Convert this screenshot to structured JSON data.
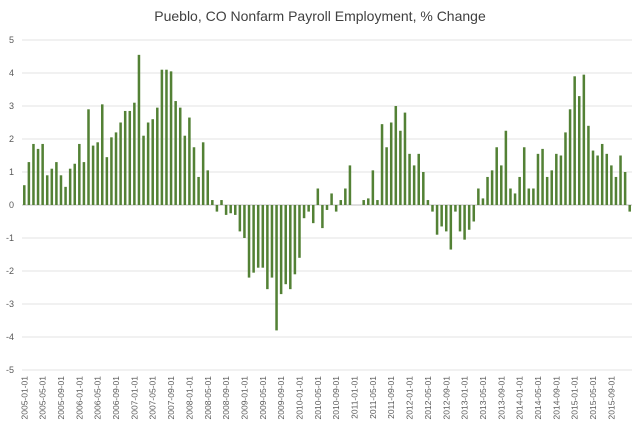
{
  "chart_data": {
    "type": "bar",
    "title": "Pueblo, CO Nonfarm Payroll Employment, % Change",
    "xlabel": "",
    "ylabel": "",
    "ylim": [
      -5,
      5
    ],
    "yticks": [
      5,
      4,
      3,
      2,
      1,
      0,
      -1,
      -2,
      -3,
      -4,
      -5
    ],
    "grid": true,
    "legend": "none",
    "color": "#538135",
    "x_tick_labels": [
      "2005-01-01",
      "2005-05-01",
      "2005-09-01",
      "2006-01-01",
      "2006-05-01",
      "2006-09-01",
      "2007-01-01",
      "2007-05-01",
      "2007-09-01",
      "2008-01-01",
      "2008-05-01",
      "2008-09-01",
      "2009-01-01",
      "2009-05-01",
      "2009-09-01",
      "2010-01-01",
      "2010-05-01",
      "2010-09-01",
      "2011-01-01",
      "2011-05-01",
      "2011-09-01",
      "2012-01-01",
      "2012-05-01",
      "2012-09-01",
      "2013-01-01",
      "2013-05-01",
      "2013-09-01",
      "2014-01-01",
      "2014-05-01",
      "2014-09-01",
      "2015-01-01",
      "2015-05-01",
      "2015-09-01"
    ],
    "x_start": "2005-01",
    "values": [
      0.6,
      1.3,
      1.85,
      1.7,
      1.85,
      0.9,
      1.1,
      1.3,
      0.9,
      0.55,
      1.1,
      1.25,
      1.85,
      1.3,
      2.9,
      1.8,
      1.9,
      3.05,
      1.45,
      2.05,
      2.2,
      2.5,
      2.85,
      2.85,
      3.1,
      4.55,
      2.1,
      2.5,
      2.6,
      2.95,
      4.1,
      4.1,
      4.05,
      3.15,
      2.95,
      2.1,
      2.65,
      1.75,
      0.85,
      1.9,
      1.05,
      0.15,
      -0.2,
      0.15,
      -0.3,
      -0.25,
      -0.3,
      -0.8,
      -1.0,
      -2.2,
      -2.05,
      -1.9,
      -1.9,
      -2.55,
      -2.2,
      -3.8,
      -2.7,
      -2.4,
      -2.55,
      -2.1,
      -1.6,
      -0.4,
      -0.2,
      -0.55,
      0.5,
      -0.7,
      -0.15,
      0.35,
      -0.2,
      0.15,
      0.5,
      1.2,
      0.0,
      0.0,
      0.15,
      0.2,
      1.05,
      0.15,
      2.45,
      1.75,
      2.5,
      3.0,
      2.25,
      2.8,
      1.55,
      1.2,
      1.55,
      1.0,
      0.15,
      -0.2,
      -0.9,
      -0.65,
      -0.8,
      -1.35,
      -0.2,
      -0.8,
      -1.05,
      -0.75,
      -0.5,
      0.5,
      0.2,
      0.85,
      1.05,
      1.75,
      1.2,
      2.25,
      0.5,
      0.35,
      0.85,
      1.75,
      0.5,
      0.5,
      1.55,
      1.7,
      0.85,
      1.05,
      1.55,
      1.5,
      2.2,
      2.9,
      3.9,
      3.3,
      3.95,
      2.4,
      1.65,
      1.5,
      1.85,
      1.55,
      1.2,
      0.85,
      1.5,
      1.0,
      -0.2
    ]
  }
}
